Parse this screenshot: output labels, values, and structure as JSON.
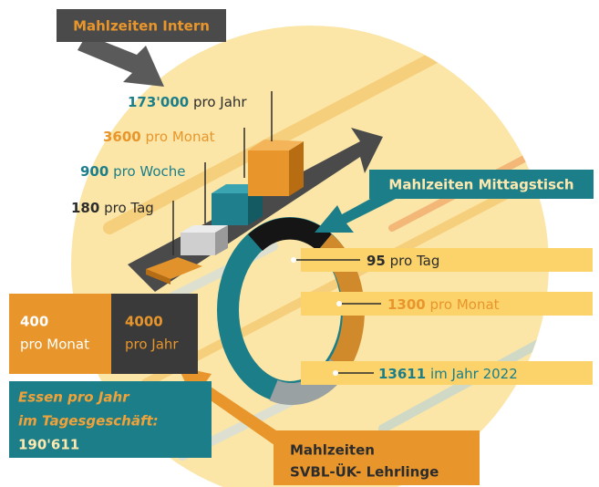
{
  "intern": {
    "title": "Mahlzeiten Intern",
    "stats": [
      {
        "value": "173'000",
        "unit": "pro Jahr"
      },
      {
        "value": "3600",
        "unit": "pro Monat"
      },
      {
        "value": "900",
        "unit": "pro Woche"
      },
      {
        "value": "180",
        "unit": "pro Tag"
      }
    ]
  },
  "mittagstisch": {
    "title": "Mahlzeiten Mittagstisch",
    "stats": [
      {
        "value": "95",
        "unit": "pro Tag"
      },
      {
        "value": "1300",
        "unit": "pro Monat"
      },
      {
        "value": "13611",
        "unit": "im Jahr 2022"
      }
    ]
  },
  "lehrlinge": {
    "title": [
      "Mahlzeiten",
      "SVBL-ÜK- Lehrlinge"
    ],
    "stats": [
      {
        "value": "400",
        "unit": "pro Monat"
      },
      {
        "value": "4000",
        "unit": "pro Jahr"
      }
    ]
  },
  "total": {
    "lines": [
      "Essen pro Jahr",
      "im Tagesgeschäft:",
      "190'611"
    ]
  }
}
